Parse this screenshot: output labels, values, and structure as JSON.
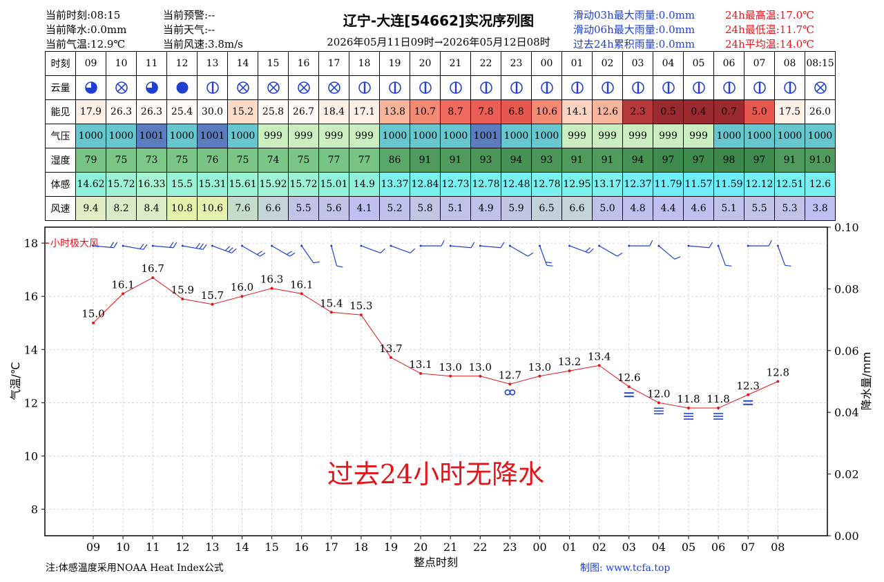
{
  "header": {
    "current_time": "当前时刻:08:15",
    "current_precip": "当前降水:0.0mm",
    "current_temp": "当前气温:12.9℃",
    "current_warning": "当前预警:--",
    "current_weather": "当前天气:--",
    "current_wind": "当前风速:3.8m/s",
    "title": "辽宁-大连[54662]实况序列图",
    "period": "2026年05月11日09时→2026年05月12日08时",
    "rain_03h": "滑动03h最大雨量:0.0mm",
    "rain_06h": "滑动06h最大雨量:0.0mm",
    "rain_24h": "过去24h累积雨量:0.0mm",
    "tmax": "24h最高温:17.0℃",
    "tmin": "24h最低温:11.7℃",
    "tavg": "24h平均温:14.0℃"
  },
  "table": {
    "row_labels": [
      "时刻",
      "云量",
      "能见",
      "气压",
      "湿度",
      "体感",
      "风速"
    ],
    "hours": [
      "09",
      "10",
      "11",
      "12",
      "13",
      "14",
      "15",
      "16",
      "17",
      "18",
      "19",
      "20",
      "21",
      "22",
      "23",
      "00",
      "01",
      "02",
      "03",
      "04",
      "05",
      "06",
      "07",
      "08",
      "08:15"
    ],
    "cloud_icons": [
      "half-circle-icon",
      "cross-circle-icon",
      "half-circle-icon",
      "full-circle-icon",
      "bar-circle-icon",
      "cross-circle-icon",
      "cross-circle-icon",
      "cross-circle-icon",
      "cross-circle-icon",
      "bar-circle-icon",
      "bar-circle-icon",
      "bar-circle-icon",
      "bar-circle-icon",
      "bar-circle-icon",
      "bar-circle-icon",
      "bar-circle-icon",
      "bar-circle-icon",
      "bar-circle-icon",
      "bar-circle-icon",
      "bar-circle-icon",
      "bar-circle-icon",
      "bar-circle-icon",
      "bar-circle-icon",
      "bar-circle-icon",
      "cross-circle-icon"
    ],
    "visibility": [
      "17.9",
      "26.3",
      "26.3",
      "25.4",
      "30.0",
      "15.2",
      "25.8",
      "26.7",
      "18.4",
      "17.1",
      "13.8",
      "10.7",
      "8.7",
      "7.8",
      "6.8",
      "10.6",
      "14.1",
      "12.6",
      "2.3",
      "0.5",
      "0.4",
      "0.7",
      "5.0",
      "17.5",
      "26.0"
    ],
    "visibility_colors": [
      "#fdf0e6",
      "#fffaf6",
      "#fffaf6",
      "#fffaf6",
      "#ffffff",
      "#fcdcc8",
      "#fffaf6",
      "#fffaf6",
      "#fdf0e6",
      "#fdf0e6",
      "#f9b49c",
      "#f48a74",
      "#ef6a5c",
      "#ea5e55",
      "#e7584f",
      "#f48a74",
      "#fcd2c0",
      "#f9b49c",
      "#b5393c",
      "#9b2a30",
      "#9b2a30",
      "#9b2a30",
      "#e7584f",
      "#fdf0e6",
      "#ffffff"
    ],
    "pressure": [
      "1000",
      "1000",
      "1001",
      "1000",
      "1001",
      "1000",
      "999",
      "999",
      "999",
      "999",
      "1000",
      "1000",
      "1000",
      "1001",
      "1000",
      "1000",
      "999",
      "999",
      "999",
      "999",
      "999",
      "1000",
      "1000",
      "1000",
      "1000"
    ],
    "pressure_colors": [
      "#68c6ce",
      "#68c6ce",
      "#5b7dbf",
      "#68c6ce",
      "#5b7dbf",
      "#68c6ce",
      "#cbeec1",
      "#cbeec1",
      "#cbeec1",
      "#cbeec1",
      "#68c6ce",
      "#68c6ce",
      "#68c6ce",
      "#5b7dbf",
      "#68c6ce",
      "#68c6ce",
      "#cbeec1",
      "#cbeec1",
      "#cbeec1",
      "#cbeec1",
      "#cbeec1",
      "#68c6ce",
      "#68c6ce",
      "#68c6ce",
      "#68c6ce"
    ],
    "humidity": [
      "79",
      "75",
      "73",
      "75",
      "76",
      "75",
      "74",
      "75",
      "77",
      "77",
      "86",
      "91",
      "91",
      "93",
      "94",
      "93",
      "91",
      "91",
      "94",
      "97",
      "97",
      "98",
      "97",
      "91",
      "91.0"
    ],
    "humidity_colors": [
      "#77c383",
      "#7bc686",
      "#7dc888",
      "#7bc686",
      "#7ac585",
      "#7bc686",
      "#7cc787",
      "#7bc686",
      "#78c484",
      "#78c484",
      "#5ba869",
      "#4f9a5c",
      "#4f9a5c",
      "#4a9557",
      "#479254",
      "#4a9557",
      "#4f9a5c",
      "#4f9a5c",
      "#479254",
      "#3f8a4d",
      "#3f8a4d",
      "#3d874a",
      "#3f8a4d",
      "#4f9a5c",
      "#4f9a5c"
    ],
    "apparent": [
      "14.62",
      "15.72",
      "16.33",
      "15.5",
      "15.31",
      "15.61",
      "15.92",
      "15.72",
      "15.01",
      "14.9",
      "13.37",
      "12.84",
      "12.73",
      "12.78",
      "12.48",
      "12.78",
      "12.95",
      "13.17",
      "12.37",
      "11.79",
      "11.57",
      "11.59",
      "12.12",
      "12.51",
      "12.6"
    ],
    "apparent_colors": [
      "#8ef1dc",
      "#9ef3d6",
      "#a8f5d2",
      "#9af2d7",
      "#98f2d8",
      "#9cf3d6",
      "#a0f4d5",
      "#9ef3d6",
      "#92f1da",
      "#90f1db",
      "#7ff2ec",
      "#7af1f1",
      "#79f1f2",
      "#7af1f1",
      "#77f0f4",
      "#7af1f1",
      "#7cf2ef",
      "#7ef2ee",
      "#75eff6",
      "#70eefb",
      "#6eeefd",
      "#6eeefd",
      "#74eff7",
      "#77f0f4",
      "#78f0f3"
    ],
    "wind": [
      "9.4",
      "8.2",
      "8.4",
      "10.8",
      "10.6",
      "7.6",
      "6.6",
      "5.5",
      "5.6",
      "4.1",
      "5.2",
      "5.8",
      "5.1",
      "4.9",
      "5.9",
      "6.5",
      "6.6",
      "5.0",
      "4.8",
      "4.4",
      "4.6",
      "5.1",
      "5.5",
      "5.3",
      "3.8"
    ],
    "wind_colors": [
      "#dfeec3",
      "#d9ebc9",
      "#daecc8",
      "#e5f1aa",
      "#e4f0ad",
      "#c6dccb",
      "#c3d5d9",
      "#c1c3e7",
      "#c1c4e6",
      "#bfbff1",
      "#c0c1ea",
      "#c1c6e4",
      "#c0c2e9",
      "#bfc1ea",
      "#c1c6e3",
      "#c2d2da",
      "#c3d5d9",
      "#c0c1eb",
      "#bfc0ec",
      "#bfc0ef",
      "#bfc0ee",
      "#c0c2e9",
      "#c1c4e6",
      "#c1c3e8",
      "#bfbff3"
    ]
  },
  "chart_data": {
    "type": "line",
    "x": [
      "09",
      "10",
      "11",
      "12",
      "13",
      "14",
      "15",
      "16",
      "17",
      "18",
      "19",
      "20",
      "21",
      "22",
      "23",
      "00",
      "01",
      "02",
      "03",
      "04",
      "05",
      "06",
      "07",
      "08"
    ],
    "series": [
      {
        "name": "",
        "values": [
          15.0,
          16.1,
          16.7,
          15.9,
          15.7,
          16.0,
          16.3,
          16.1,
          15.4,
          15.3,
          13.7,
          13.1,
          13.0,
          13.0,
          12.7,
          13.0,
          13.2,
          13.4,
          12.6,
          12.0,
          11.8,
          11.8,
          12.3,
          12.8
        ],
        "color": "#e0161b"
      }
    ],
    "value_labels": [
      "15.0",
      "16.1",
      "16.7",
      "15.9",
      "15.7",
      "16.0",
      "16.3",
      "16.1",
      "15.4",
      "15.3",
      "13.7",
      "13.1",
      "13.0",
      "13.0",
      "12.7",
      "13.0",
      "13.2",
      "13.4",
      "12.6",
      "12.0",
      "11.8",
      "11.8",
      "12.3",
      "12.8"
    ],
    "ylabel": "气温/℃",
    "y2label": "降水量/mm",
    "xlabel": "整点时刻",
    "ylim": [
      7,
      18.6
    ],
    "y2lim": [
      0,
      0.1
    ],
    "yticks": [
      "8",
      "10",
      "12",
      "14",
      "16",
      "18"
    ],
    "y2ticks": [
      "0.00",
      "0.02",
      "0.04",
      "0.06",
      "0.08",
      "0.10"
    ],
    "gust_label": "小时极大风",
    "wind_barb_directions_deg": [
      275,
      280,
      275,
      280,
      290,
      300,
      300,
      325,
      345,
      290,
      290,
      270,
      275,
      275,
      300,
      340,
      290,
      300,
      270,
      310,
      275,
      340,
      270,
      340
    ],
    "weather_symbols": [
      "",
      "",
      "",
      "",
      "",
      "",
      "",
      "",
      "",
      "",
      "",
      "",
      "",
      "",
      "haze-icon",
      "",
      "",
      "",
      "mist-icon",
      "fog-icon",
      "fog-icon",
      "fog-icon",
      "mist-icon",
      ""
    ],
    "annotation": "过去24小时无降水",
    "grid": true
  },
  "footer": {
    "note": "注:体感温度采用NOAA Heat Index公式",
    "credit": "制图: www.tcfa.top"
  }
}
